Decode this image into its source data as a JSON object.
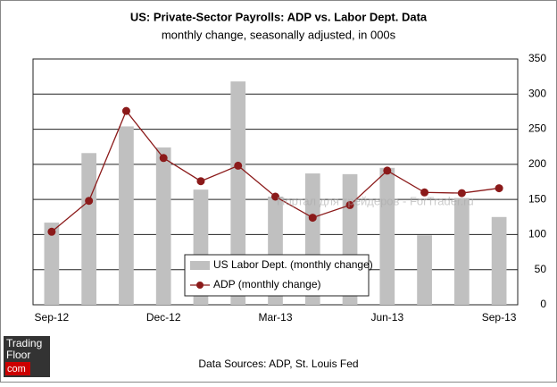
{
  "chart_data": {
    "type": "bar-line",
    "title": "US: Private-Sector Payrolls: ADP vs. Labor Dept. Data",
    "subtitle": "monthly change, seasonally adjusted, in 000s",
    "categories": [
      "Sep-12",
      null,
      null,
      "Dec-12",
      null,
      null,
      "Mar-13",
      null,
      null,
      "Jun-13",
      null,
      null,
      "Sep-13"
    ],
    "series": [
      {
        "name": "US Labor Dept. (monthly change)",
        "type": "bar",
        "color": "#c0c0c0",
        "values": [
          117,
          216,
          254,
          224,
          164,
          318,
          154,
          187,
          186,
          195,
          99,
          152,
          125
        ]
      },
      {
        "name": "ADP (monthly change)",
        "type": "line",
        "color": "#8b1a1a",
        "values": [
          104,
          148,
          276,
          209,
          176,
          198,
          154,
          124,
          142,
          191,
          160,
          159,
          166
        ]
      }
    ],
    "ylim": [
      0,
      350
    ],
    "yticks": [
      0,
      50,
      100,
      150,
      200,
      250,
      300,
      350
    ],
    "grid": true,
    "y_axis_side": "right",
    "legend": "bottom-center",
    "watermark": "Портал для трейдеров - ForTrader.ru",
    "source": "Data Sources: ADP, St. Louis Fed",
    "logo": [
      "Trading",
      "Floor",
      "com"
    ]
  }
}
